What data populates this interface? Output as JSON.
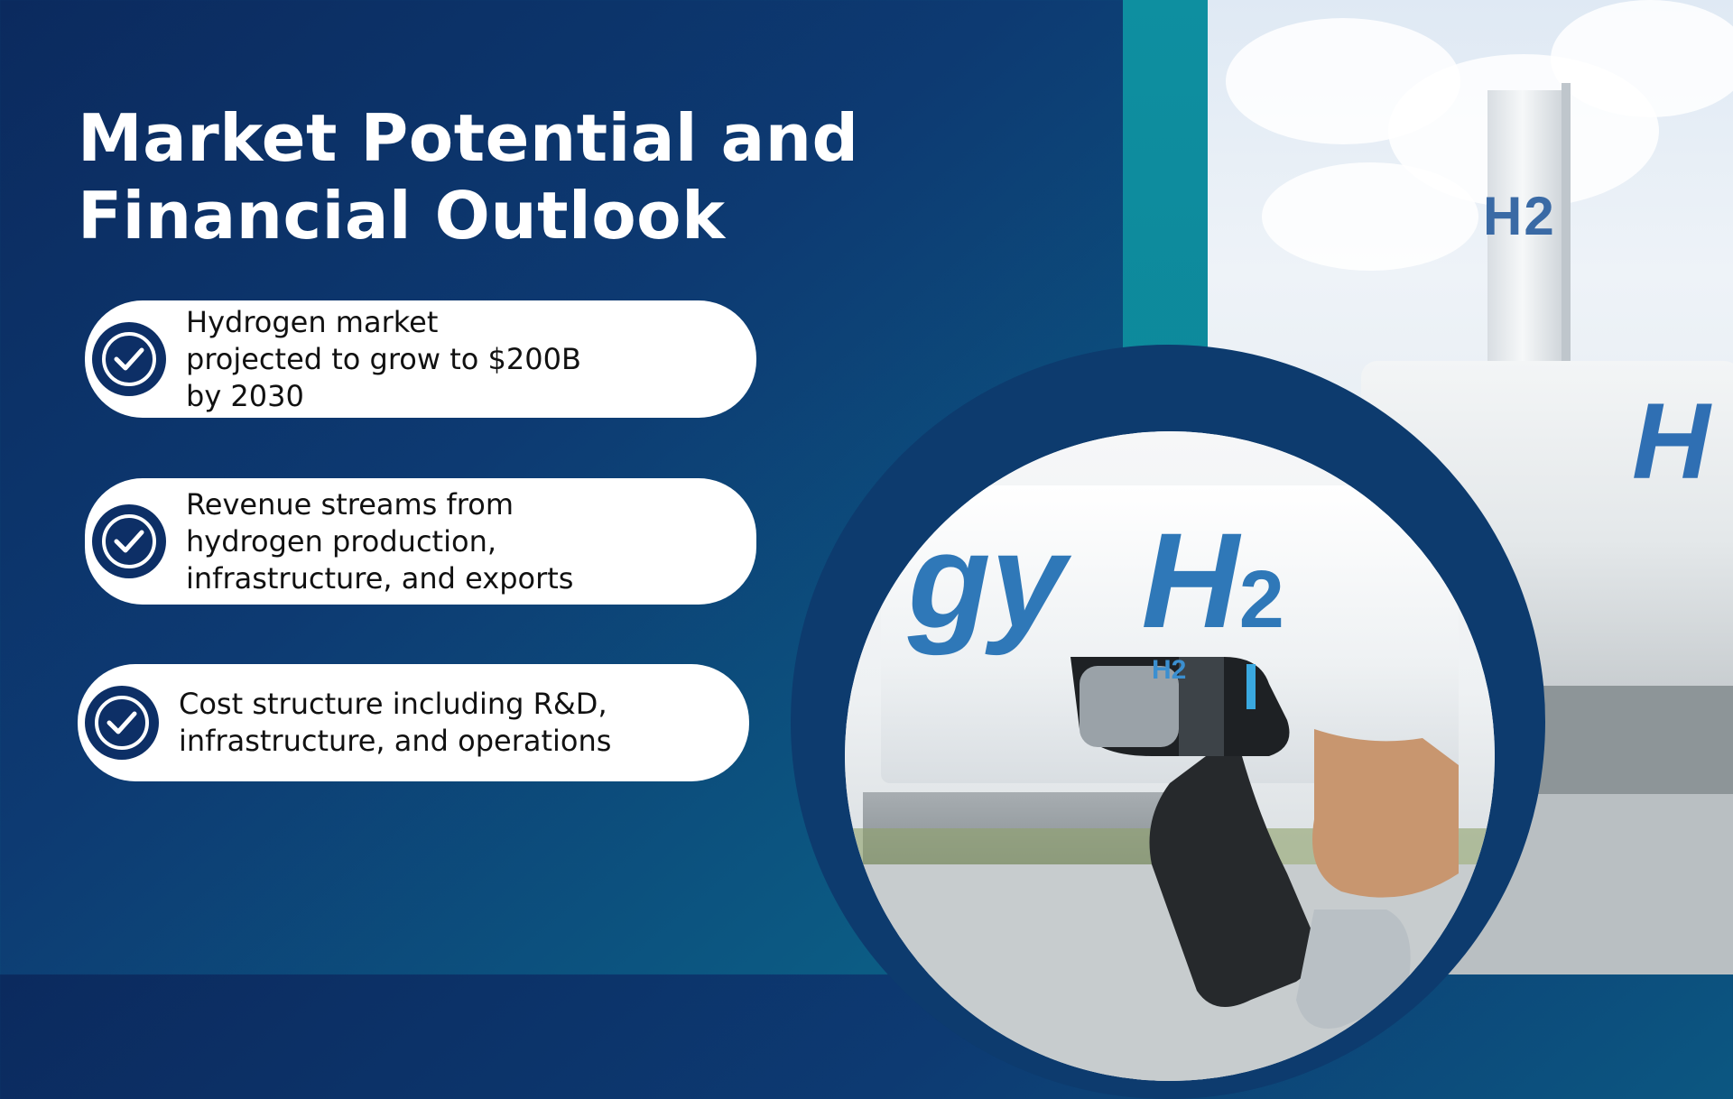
{
  "slide": {
    "title_line1": "Market Potential and",
    "title_line2": "Financial Outlook",
    "points": [
      {
        "line1": "Hydrogen market",
        "line2": "projected to grow to $200B",
        "line3": "by 2030"
      },
      {
        "line1": "Revenue streams from",
        "line2": "hydrogen production,",
        "line3": "infrastructure, and exports"
      },
      {
        "line1": "Cost structure including R&D,",
        "line2": "infrastructure, and operations"
      }
    ],
    "icons": {
      "bullet": "check-circle-icon"
    }
  },
  "photos": {
    "tower_label": "H2",
    "truck_label": "H",
    "tank_label_prefix": "gy",
    "tank_label_main": "H",
    "tank_label_sub": "2",
    "nozzle_label": "H2"
  },
  "colors": {
    "background_start": "#0b2a5e",
    "background_end": "#0b7590",
    "teal_band": "#0e8fa0",
    "circle_ring": "#0d3b6e",
    "check_badge": "#0d2f66",
    "h2_blue": "#2f78b8"
  }
}
